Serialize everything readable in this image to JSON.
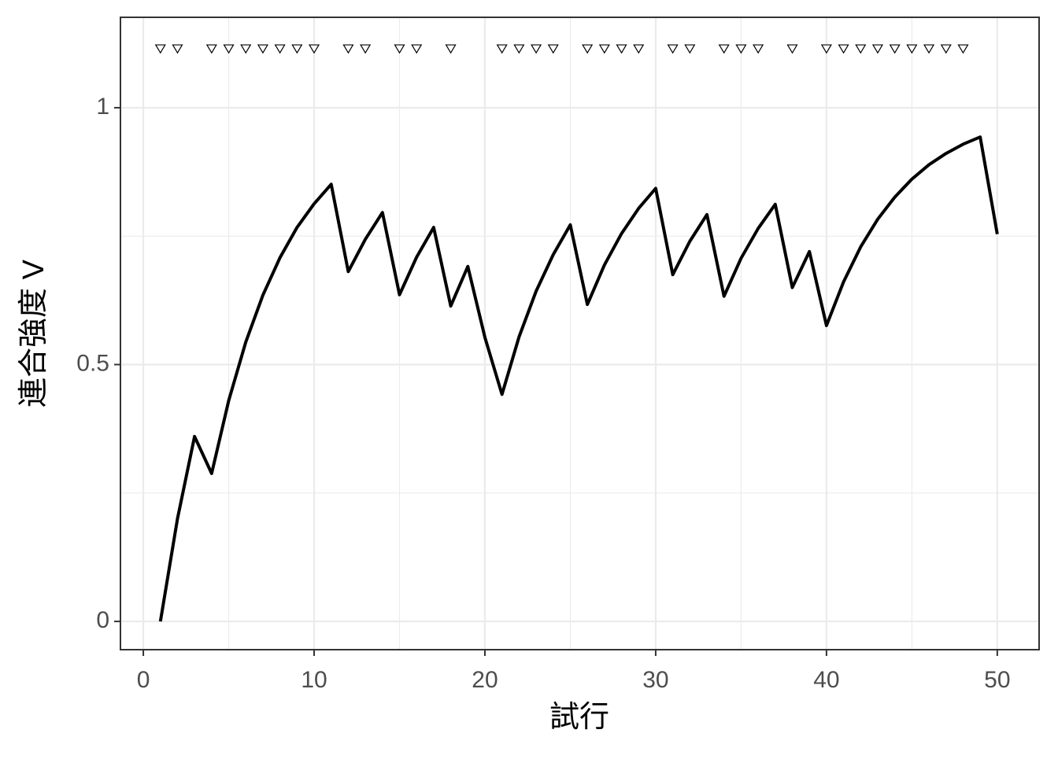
{
  "chart_data": {
    "type": "line",
    "x_label": "試行",
    "y_label": "連合強度 V",
    "x": [
      1,
      2,
      3,
      4,
      5,
      6,
      7,
      8,
      9,
      10,
      11,
      12,
      13,
      14,
      15,
      16,
      17,
      18,
      19,
      20,
      21,
      22,
      23,
      24,
      25,
      26,
      27,
      28,
      29,
      30,
      31,
      32,
      33,
      34,
      35,
      36,
      37,
      38,
      39,
      40,
      41,
      42,
      43,
      44,
      45,
      46,
      47,
      48,
      49,
      50
    ],
    "series": [
      {
        "style": "line",
        "color": "#000000",
        "values": [
          0,
          0.2,
          0.36,
          0.288,
          0.43,
          0.544,
          0.635,
          0.708,
          0.767,
          0.813,
          0.851,
          0.681,
          0.744,
          0.796,
          0.636,
          0.709,
          0.767,
          0.614,
          0.691,
          0.553,
          0.442,
          0.554,
          0.643,
          0.714,
          0.772,
          0.617,
          0.694,
          0.755,
          0.804,
          0.843,
          0.675,
          0.74,
          0.792,
          0.633,
          0.707,
          0.765,
          0.812,
          0.65,
          0.72,
          0.576,
          0.661,
          0.729,
          0.783,
          0.826,
          0.861,
          0.889,
          0.911,
          0.929,
          0.943,
          0.754
        ]
      },
      {
        "style": "triangle-down",
        "color": "#000000",
        "x": [
          1,
          2,
          4,
          5,
          6,
          7,
          8,
          9,
          10,
          12,
          13,
          15,
          16,
          18,
          21,
          22,
          23,
          24,
          26,
          27,
          28,
          29,
          31,
          32,
          34,
          35,
          36,
          38,
          40,
          41,
          42,
          43,
          44,
          45,
          46,
          47,
          48
        ],
        "values": [
          1.115,
          1.115,
          1.115,
          1.115,
          1.115,
          1.115,
          1.115,
          1.115,
          1.115,
          1.115,
          1.115,
          1.115,
          1.115,
          1.115,
          1.115,
          1.115,
          1.115,
          1.115,
          1.115,
          1.115,
          1.115,
          1.115,
          1.115,
          1.115,
          1.115,
          1.115,
          1.115,
          1.115,
          1.115,
          1.115,
          1.115,
          1.115,
          1.115,
          1.115,
          1.115,
          1.115,
          1.115
        ]
      }
    ],
    "xlim": [
      -1.34,
      52.45
    ],
    "ylim": [
      -0.055,
      1.176
    ],
    "xticks": [
      0,
      10,
      20,
      30,
      40,
      50
    ],
    "yticks": [
      0,
      0.5,
      1
    ],
    "xminor": [
      5,
      15,
      25,
      35,
      45
    ],
    "yminor": [
      0.25,
      0.75
    ],
    "grid": true
  }
}
